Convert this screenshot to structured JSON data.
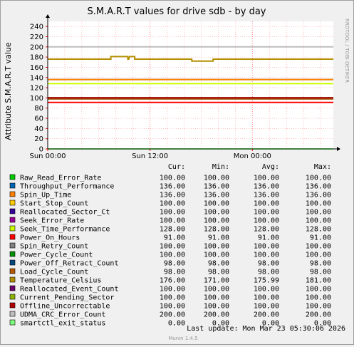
{
  "chart_data": {
    "type": "line",
    "title": "S.M.A.R.T values for drive sdb - by day",
    "ylabel": "Attribute S.M.A.R.T value",
    "xlabel": "",
    "ylim": [
      0,
      250
    ],
    "yticks": [
      0,
      20,
      40,
      60,
      80,
      100,
      120,
      140,
      160,
      180,
      200,
      220,
      240
    ],
    "xlim": [
      0,
      33.5
    ],
    "xticks": [
      {
        "label": "Sun 00:00",
        "value": 0
      },
      {
        "label": "Sun 12:00",
        "value": 12
      },
      {
        "label": "Mon 00:00",
        "value": 24
      }
    ],
    "grid": true,
    "side_credit": "RRDTOOL / TOBI OETIKER",
    "legend_headers": {
      "cur": "Cur:",
      "min": "Min:",
      "avg": "Avg:",
      "max": "Max:"
    },
    "series": [
      {
        "name": "Raw_Read_Error_Rate",
        "color": "#00cc00",
        "cur": "100.00",
        "min": "100.00",
        "avg": "100.00",
        "max": "100.00",
        "x": [
          0,
          33.5
        ],
        "y": [
          100,
          100
        ]
      },
      {
        "name": "Throughput_Performance",
        "color": "#0066b3",
        "cur": "136.00",
        "min": "136.00",
        "avg": "136.00",
        "max": "136.00",
        "x": [
          0,
          33.5
        ],
        "y": [
          136,
          136
        ]
      },
      {
        "name": "Spin_Up_Time",
        "color": "#ff8000",
        "cur": "136.00",
        "min": "136.00",
        "avg": "136.00",
        "max": "136.00",
        "x": [
          0,
          33.5
        ],
        "y": [
          136,
          136
        ]
      },
      {
        "name": "Start_Stop_Count",
        "color": "#ffcc00",
        "cur": "100.00",
        "min": "100.00",
        "avg": "100.00",
        "max": "100.00",
        "x": [
          0,
          33.5
        ],
        "y": [
          100,
          100
        ]
      },
      {
        "name": "Reallocated_Sector_Ct",
        "color": "#330099",
        "cur": "100.00",
        "min": "100.00",
        "avg": "100.00",
        "max": "100.00",
        "x": [
          0,
          33.5
        ],
        "y": [
          100,
          100
        ]
      },
      {
        "name": "Seek_Error_Rate",
        "color": "#990099",
        "cur": "100.00",
        "min": "100.00",
        "avg": "100.00",
        "max": "100.00",
        "x": [
          0,
          33.5
        ],
        "y": [
          100,
          100
        ]
      },
      {
        "name": "Seek_Time_Performance",
        "color": "#ccff00",
        "cur": "128.00",
        "min": "128.00",
        "avg": "128.00",
        "max": "128.00",
        "x": [
          0,
          33.5
        ],
        "y": [
          128,
          128
        ]
      },
      {
        "name": "Power_On_Hours",
        "color": "#ff0000",
        "cur": "91.00",
        "min": "91.00",
        "avg": "91.00",
        "max": "91.00",
        "x": [
          0,
          33.5
        ],
        "y": [
          91,
          91
        ]
      },
      {
        "name": "Spin_Retry_Count",
        "color": "#808080",
        "cur": "100.00",
        "min": "100.00",
        "avg": "100.00",
        "max": "100.00",
        "x": [
          0,
          33.5
        ],
        "y": [
          100,
          100
        ]
      },
      {
        "name": "Power_Cycle_Count",
        "color": "#008f00",
        "cur": "100.00",
        "min": "100.00",
        "avg": "100.00",
        "max": "100.00",
        "x": [
          0,
          33.5
        ],
        "y": [
          100,
          100
        ]
      },
      {
        "name": "Power_Off_Retract_Count",
        "color": "#00487d",
        "cur": "98.00",
        "min": "98.00",
        "avg": "98.00",
        "max": "98.00",
        "x": [
          0,
          33.5
        ],
        "y": [
          98,
          98
        ]
      },
      {
        "name": "Load_Cycle_Count",
        "color": "#b35a00",
        "cur": "98.00",
        "min": "98.00",
        "avg": "98.00",
        "max": "98.00",
        "x": [
          0,
          33.5
        ],
        "y": [
          98,
          98
        ]
      },
      {
        "name": "Temperature_Celsius",
        "color": "#b38f00",
        "cur": "176.00",
        "min": "171.00",
        "avg": "175.99",
        "max": "181.00",
        "x": [
          0,
          7.4,
          7.4,
          9.4,
          9.4,
          9.5,
          9.6,
          9.7,
          9.7,
          10.2,
          10.2,
          16.9,
          16.9,
          19.4,
          19.4,
          33.5
        ],
        "y": [
          176,
          176,
          181,
          181,
          176,
          176,
          181,
          181,
          181,
          181,
          176,
          176,
          172,
          172,
          176,
          176
        ]
      },
      {
        "name": "Reallocated_Event_Count",
        "color": "#6b006b",
        "cur": "100.00",
        "min": "100.00",
        "avg": "100.00",
        "max": "100.00",
        "x": [
          0,
          33.5
        ],
        "y": [
          100,
          100
        ]
      },
      {
        "name": "Current_Pending_Sector",
        "color": "#8fb300",
        "cur": "100.00",
        "min": "100.00",
        "avg": "100.00",
        "max": "100.00",
        "x": [
          0,
          33.5
        ],
        "y": [
          100,
          100
        ]
      },
      {
        "name": "Offline_Uncorrectable",
        "color": "#b30000",
        "cur": "100.00",
        "min": "100.00",
        "avg": "100.00",
        "max": "100.00",
        "x": [
          0,
          33.5
        ],
        "y": [
          100,
          100
        ]
      },
      {
        "name": "UDMA_CRC_Error_Count",
        "color": "#bebebe",
        "cur": "200.00",
        "min": "200.00",
        "avg": "200.00",
        "max": "200.00",
        "x": [
          0,
          33.5
        ],
        "y": [
          200,
          200
        ]
      },
      {
        "name": "smartctl_exit_status",
        "color": "#80ff80",
        "cur": "0.00",
        "min": "0.00",
        "avg": "0.00",
        "max": "0.00",
        "x": [
          0,
          33.5
        ],
        "y": [
          0,
          0
        ]
      }
    ]
  },
  "footer": {
    "last_update": "Last update:  Mon Mar 23 05:30:06 2026",
    "munin_version": "Munin 1.4.5"
  }
}
